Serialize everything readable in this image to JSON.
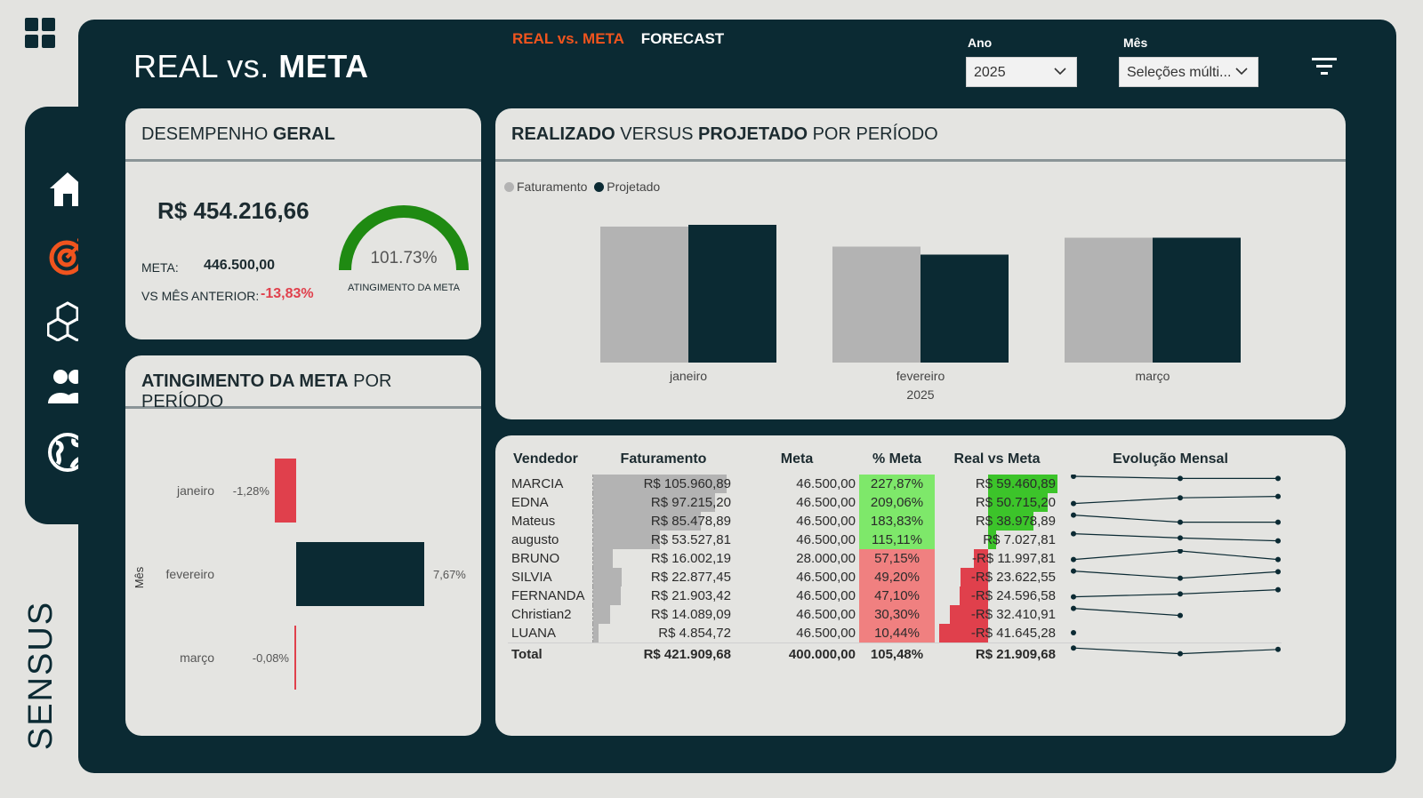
{
  "app": {
    "title_light": "REAL vs.",
    "title_bold": "META",
    "logo_text": "SENSUS",
    "nav": [
      {
        "label": "REAL vs. META",
        "active": true
      },
      {
        "label": "FORECAST",
        "active": false
      }
    ],
    "filters": {
      "ano_label": "Ano",
      "ano_value": "2025",
      "mes_label": "Mês",
      "mes_value": "Seleções múlti..."
    },
    "sidebar_icons": [
      "home-icon",
      "target-icon",
      "boxes-icon",
      "users-icon",
      "globe-icon"
    ],
    "colors": {
      "accent": "#f0541e",
      "dark": "#0b2a33",
      "green": "#1f8a12",
      "red": "#e0404c"
    }
  },
  "desempenho": {
    "title_light": "DESEMPENHO",
    "title_bold": "GERAL",
    "value": "R$ 454.216,66",
    "meta_label": "META:",
    "meta_value": "446.500,00",
    "vs_label": "VS MÊS ANTERIOR:",
    "vs_value": "-13,83%",
    "gauge_value": "101.73%",
    "gauge_fraction": 1.0173,
    "gauge_caption": "ATINGIMENTO DA META"
  },
  "atingimento": {
    "title_bold": "ATINGIMENTO DA META",
    "title_light": "POR PERÍODO",
    "axis_label": "Mês",
    "chart_data": {
      "type": "bar",
      "orientation": "horizontal",
      "categories": [
        "janeiro",
        "fevereiro",
        "março"
      ],
      "values": [
        -1.28,
        7.67,
        -0.08
      ],
      "labels": [
        "-1,28%",
        "7,67%",
        "-0,08%"
      ],
      "ylabel": "Mês"
    }
  },
  "realizado": {
    "title_bold1": "REALIZADO",
    "title_light1": "VERSUS",
    "title_bold2": "PROJETADO",
    "title_light2": "POR PERÍODO",
    "chart_data": {
      "type": "bar",
      "categories": [
        "janeiro",
        "fevereiro",
        "março"
      ],
      "x_group_label": "2025",
      "series": [
        {
          "name": "Faturamento",
          "color": "#b3b3b3",
          "values": [
            153000,
            130500,
            140500
          ]
        },
        {
          "name": "Projetado",
          "color": "#0b2a33",
          "values": [
            155000,
            121500,
            140500
          ]
        }
      ],
      "ylim": [
        0,
        170000
      ]
    }
  },
  "table": {
    "columns": [
      "Vendedor",
      "Faturamento",
      "Meta",
      "% Meta",
      "Real vs Meta",
      "Evolução Mensal"
    ],
    "rows": [
      {
        "vendedor": "MARCIA",
        "faturamento": "R$ 105.960,89",
        "fat": 105960.89,
        "meta": "46.500,00",
        "pct": "227,87%",
        "pos": true,
        "real": "R$ 59.460,89",
        "rv": 59460.89,
        "evo": [
          1.0,
          0.85,
          0.85
        ]
      },
      {
        "vendedor": "EDNA",
        "faturamento": "R$ 97.215,20",
        "fat": 97215.2,
        "meta": "46.500,00",
        "pct": "209,06%",
        "pos": true,
        "real": "R$ 50.715,20",
        "rv": 50715.2,
        "evo": [
          0.4,
          0.8,
          0.9
        ]
      },
      {
        "vendedor": "Mateus",
        "faturamento": "R$ 85.478,89",
        "fat": 85478.89,
        "meta": "46.500,00",
        "pct": "183,83%",
        "pos": true,
        "real": "R$ 38.978,89",
        "rv": 38978.89,
        "evo": [
          0.9,
          0.4,
          0.4
        ]
      },
      {
        "vendedor": "augusto",
        "faturamento": "R$ 53.527,81",
        "fat": 53527.81,
        "meta": "46.500,00",
        "pct": "115,11%",
        "pos": true,
        "real": "R$ 7.027,81",
        "rv": 7027.81,
        "evo": [
          0.9,
          0.6,
          0.4
        ]
      },
      {
        "vendedor": "BRUNO",
        "faturamento": "R$ 16.002,19",
        "fat": 16002.19,
        "meta": "28.000,00",
        "pct": "57,15%",
        "pos": false,
        "real": "-R$ 11.997,81",
        "rv": -11997.81,
        "evo": [
          0.4,
          1.0,
          0.4
        ]
      },
      {
        "vendedor": "SILVIA",
        "faturamento": "R$ 22.877,45",
        "fat": 22877.45,
        "meta": "46.500,00",
        "pct": "49,20%",
        "pos": false,
        "real": "-R$ 23.622,55",
        "rv": -23622.55,
        "evo": [
          0.9,
          0.4,
          0.85
        ]
      },
      {
        "vendedor": "FERNANDA",
        "faturamento": "R$ 21.903,42",
        "fat": 21903.42,
        "meta": "46.500,00",
        "pct": "47,10%",
        "pos": false,
        "real": "-R$ 24.596,58",
        "rv": -24596.58,
        "evo": [
          0.4,
          0.6,
          0.9
        ]
      },
      {
        "vendedor": "Christian2",
        "faturamento": "R$ 14.089,09",
        "fat": 14089.09,
        "meta": "46.500,00",
        "pct": "30,30%",
        "pos": false,
        "real": "-R$ 32.410,91",
        "rv": -32410.91,
        "evo": [
          0.9,
          0.4
        ]
      },
      {
        "vendedor": "LUANA",
        "faturamento": "R$ 4.854,72",
        "fat": 4854.72,
        "meta": "46.500,00",
        "pct": "10,44%",
        "pos": false,
        "real": "-R$ 41.645,28",
        "rv": -41645.28,
        "evo": [
          0.5
        ]
      }
    ],
    "total": {
      "label": "Total",
      "faturamento": "R$ 421.909,68",
      "meta": "400.000,00",
      "pct": "105,48%",
      "real": "R$ 21.909,68",
      "evo": [
        0.8,
        0.4,
        0.7
      ]
    }
  }
}
